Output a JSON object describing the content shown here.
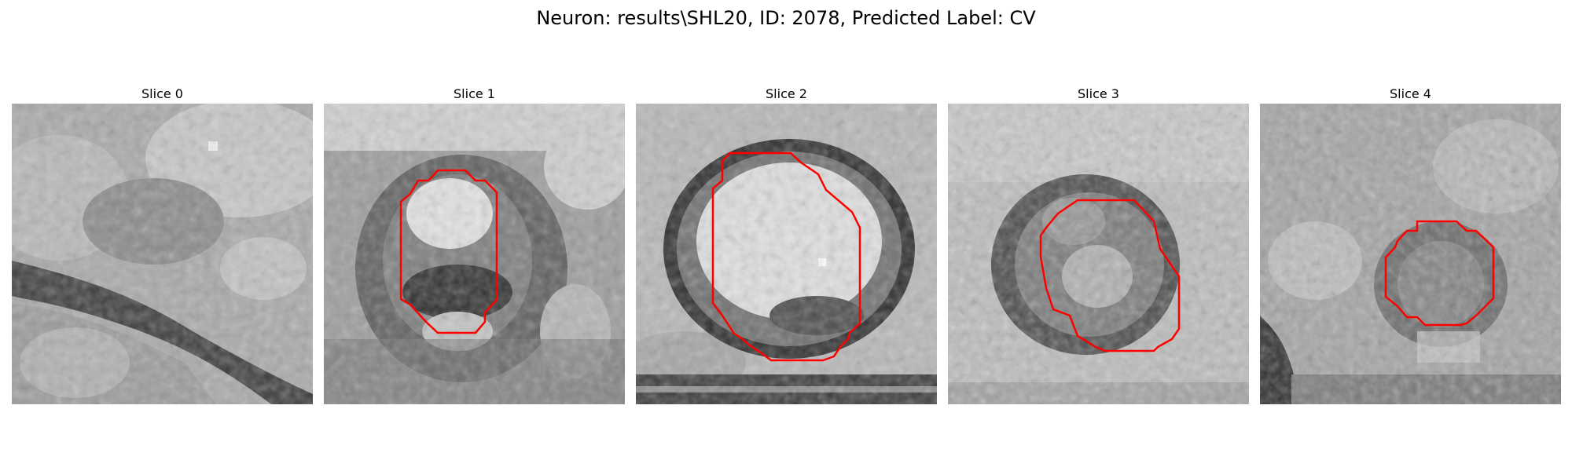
{
  "figure": {
    "title": "Neuron: results\\SHL20, ID: 2078, Predicted Label: CV",
    "contour_color": "#ff0000",
    "colormap": "gray",
    "panels": [
      {
        "title": "Slice 0",
        "has_contour": false
      },
      {
        "title": "Slice 1",
        "has_contour": true
      },
      {
        "title": "Slice 2",
        "has_contour": true
      },
      {
        "title": "Slice 3",
        "has_contour": true
      },
      {
        "title": "Slice 4",
        "has_contour": true
      }
    ]
  }
}
